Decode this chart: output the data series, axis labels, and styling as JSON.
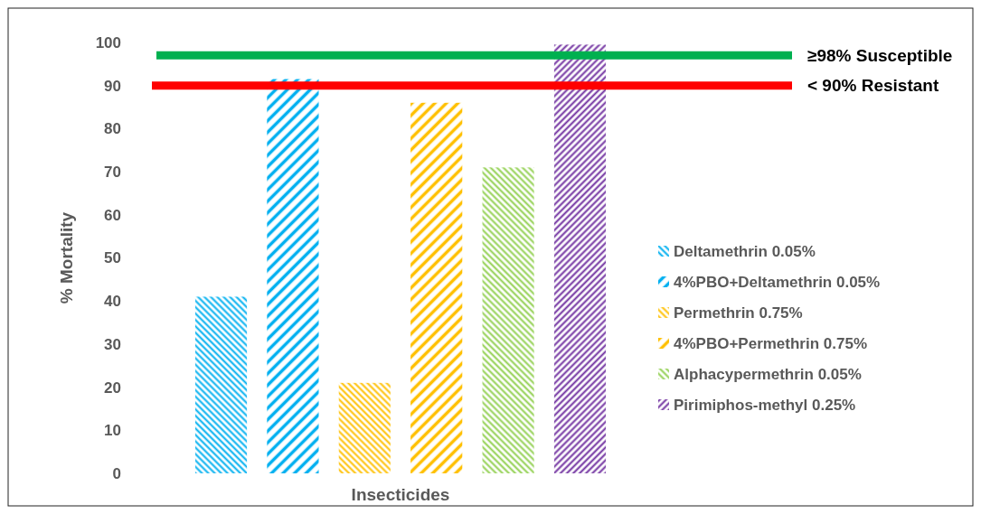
{
  "chart_data": {
    "type": "bar",
    "xlabel": "Insecticides",
    "ylabel": "% Mortality",
    "categories": [
      null
    ],
    "series": [
      {
        "name": "Deltamethrin 0.05%",
        "color": "#00b0f0",
        "values": [
          41
        ]
      },
      {
        "name": "4%PBO+Deltamethrin 0.05%",
        "color": "#00b0f0",
        "values": [
          91.5
        ]
      },
      {
        "name": "Permethrin 0.75%",
        "color": "#ffc000",
        "values": [
          21
        ]
      },
      {
        "name": "4%PBO+Permethrin 0.75%",
        "color": "#ffc000",
        "values": [
          86
        ]
      },
      {
        "name": "Alphacypermethrin 0.05%",
        "color": "#92d050",
        "values": [
          71
        ]
      },
      {
        "name": "Pirimiphos-methyl 0.25%",
        "color": "#7030a0",
        "values": [
          99.5
        ]
      }
    ],
    "ylim": [
      0,
      100
    ],
    "yticks": [
      0,
      10,
      20,
      30,
      40,
      50,
      60,
      70,
      80,
      90,
      100
    ],
    "grid": false,
    "legend": "right",
    "ref_lines": [
      {
        "axis": "y",
        "value": 97,
        "label": "≥98% Susceptible",
        "color": "#00b050"
      },
      {
        "axis": "y",
        "value": 90,
        "label": "< 90% Resistant",
        "color": "#ff0000"
      }
    ]
  }
}
